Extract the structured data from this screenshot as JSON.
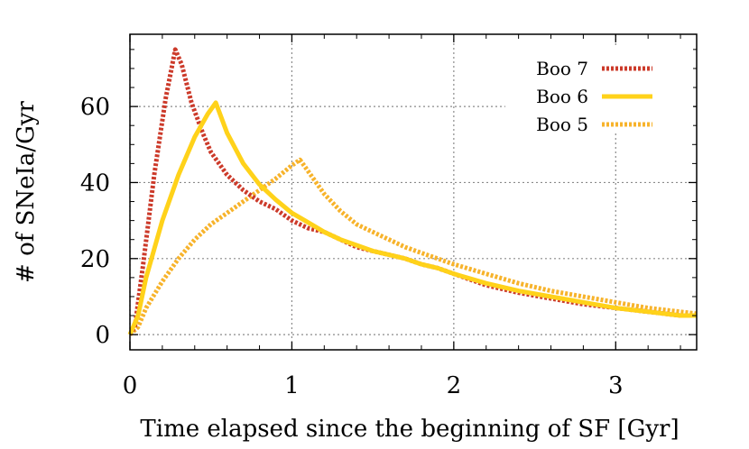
{
  "chart_data": {
    "type": "line",
    "title": "",
    "xlabel": "Time elapsed since the beginning of SF [Gyr]",
    "ylabel": "# of SNeIa/Gyr",
    "xlim": [
      0,
      3.5
    ],
    "ylim": [
      -4,
      79
    ],
    "x_ticks": [
      0,
      1,
      2,
      3
    ],
    "x_tick_labels": [
      "0",
      "1",
      "2",
      "3"
    ],
    "y_ticks": [
      0,
      20,
      40,
      60
    ],
    "y_tick_labels": [
      "0",
      "20",
      "40",
      "60"
    ],
    "grid": true,
    "legend_position": "top-right",
    "series": [
      {
        "name": "Boo 7",
        "color": "#cc3a2a",
        "style": "dotted",
        "x": [
          0,
          0.03,
          0.08,
          0.15,
          0.22,
          0.28,
          0.32,
          0.38,
          0.45,
          0.5,
          0.6,
          0.7,
          0.8,
          0.9,
          1.0,
          1.1,
          1.2,
          1.3,
          1.4,
          1.5,
          1.6,
          1.7,
          1.8,
          1.9,
          2.0,
          2.1,
          2.2,
          2.4,
          2.6,
          2.8,
          3.0,
          3.2,
          3.4,
          3.5
        ],
        "values": [
          0,
          2,
          18,
          42,
          62,
          75,
          71,
          61,
          53,
          48,
          42,
          38,
          35,
          33,
          30,
          28,
          27,
          25,
          23,
          22,
          21,
          20,
          18.5,
          17.5,
          16,
          14.5,
          13,
          11,
          9.5,
          8,
          7,
          6,
          5,
          5
        ]
      },
      {
        "name": "Boo 6",
        "color": "#ffd21a",
        "style": "solid",
        "x": [
          0,
          0.05,
          0.1,
          0.2,
          0.3,
          0.4,
          0.48,
          0.53,
          0.6,
          0.7,
          0.8,
          0.9,
          1.0,
          1.1,
          1.2,
          1.3,
          1.4,
          1.5,
          1.6,
          1.7,
          1.8,
          1.9,
          2.0,
          2.2,
          2.4,
          2.6,
          2.8,
          3.0,
          3.2,
          3.4,
          3.5
        ],
        "values": [
          0,
          5,
          15,
          30,
          42,
          52,
          58,
          61,
          53,
          45,
          39.5,
          35.5,
          32,
          29.5,
          27,
          25,
          23.5,
          22,
          21,
          20,
          18.5,
          17.5,
          16,
          13.5,
          11.5,
          10,
          8.5,
          7,
          6,
          5,
          5
        ]
      },
      {
        "name": "Boo 5",
        "color": "#f7b32b",
        "style": "dotted",
        "x": [
          0,
          0.05,
          0.1,
          0.2,
          0.3,
          0.4,
          0.5,
          0.6,
          0.7,
          0.8,
          0.9,
          1.0,
          1.05,
          1.1,
          1.2,
          1.3,
          1.4,
          1.5,
          1.6,
          1.7,
          1.8,
          1.9,
          2.0,
          2.2,
          2.4,
          2.6,
          2.8,
          3.0,
          3.2,
          3.4,
          3.5
        ],
        "values": [
          0,
          2,
          7,
          14,
          20,
          25,
          29,
          32,
          35,
          38,
          41,
          44.5,
          46,
          43,
          37,
          32.5,
          29,
          27,
          25,
          23,
          21.5,
          20,
          18.5,
          16,
          13.5,
          11.5,
          10,
          8.5,
          7,
          6,
          5.5
        ]
      }
    ]
  }
}
